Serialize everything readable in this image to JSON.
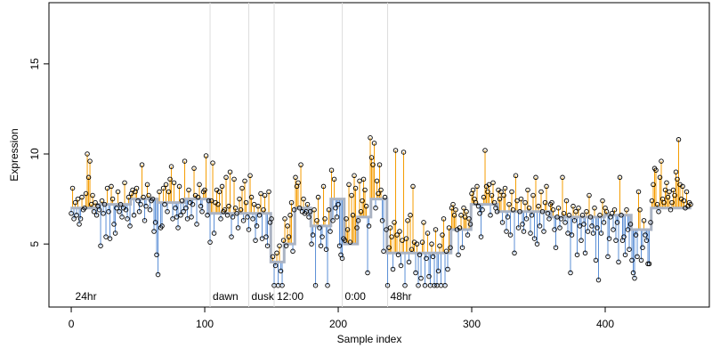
{
  "chart_data": {
    "type": "step-fit",
    "xlabel": "Sample index",
    "ylabel": "Expression",
    "xlim": [
      -16.7,
      478
    ],
    "ylim": [
      1.5,
      18.4
    ],
    "xticks": [
      0,
      100,
      200,
      300,
      400
    ],
    "yticks": [
      5,
      10,
      15
    ],
    "point_color": "#000000",
    "above_color": "#f59c00",
    "below_color": "#5b8fd6",
    "fit_color": "#aab3c3",
    "marker_color": "#dddddd",
    "marker_label_color": "#b0b0b0",
    "markers": [
      {
        "x": 1,
        "label": "24hr",
        "line": false
      },
      {
        "x": 104,
        "label": "dawn",
        "line": true
      },
      {
        "x": 133,
        "label": "dusk",
        "line": true
      },
      {
        "x": 152,
        "label": "12:00",
        "line": true
      },
      {
        "x": 203,
        "label": "0:00",
        "line": true
      },
      {
        "x": 237,
        "label": "48hr",
        "line": true
      }
    ],
    "fit": {
      "breaks": [
        0,
        20,
        45,
        65,
        85,
        104,
        150,
        160,
        168,
        180,
        195,
        205,
        215,
        225,
        237,
        285,
        300,
        320,
        360,
        400,
        420,
        435,
        465
      ],
      "levels": [
        7.0,
        7.2,
        7.5,
        7.3,
        7.5,
        6.7,
        4.0,
        5.0,
        7.0,
        6.0,
        7.5,
        5.0,
        6.5,
        7.5,
        4.5,
        5.8,
        7.2,
        6.8,
        6.5,
        6.6,
        5.8,
        7.0
      ]
    },
    "values": [
      6.7,
      8.1,
      6.4,
      7.3,
      6.6,
      7.5,
      6.1,
      6.4,
      7.6,
      6.9,
      7.0,
      7.8,
      10.0,
      8.7,
      9.6,
      7.2,
      7.7,
      6.8,
      7.3,
      6.6,
      7.1,
      6.9,
      4.9,
      7.4,
      6.7,
      7.2,
      5.4,
      8.1,
      6.8,
      5.3,
      8.2,
      7.5,
      6.1,
      5.6,
      7.0,
      7.9,
      6.8,
      7.2,
      6.5,
      7.0,
      8.4,
      6.9,
      6.4,
      7.6,
      6.0,
      7.8,
      8.0,
      6.6,
      7.9,
      8.1,
      7.4,
      6.8,
      7.2,
      9.4,
      7.6,
      6.3,
      7.1,
      8.3,
      7.7,
      6.9,
      7.4,
      7.5,
      5.7,
      6.2,
      4.4,
      3.3,
      7.9,
      5.9,
      6.0,
      8.1,
      7.2,
      8.3,
      6.8,
      7.9,
      8.6,
      9.3,
      6.4,
      8.4,
      7.0,
      6.5,
      5.9,
      8.2,
      6.6,
      7.4,
      6.8,
      9.6,
      7.0,
      6.4,
      8.0,
      7.3,
      6.5,
      7.2,
      9.2,
      7.7,
      6.1,
      7.6,
      8.3,
      7.1,
      6.8,
      7.9,
      8.0,
      9.9,
      6.6,
      7.4,
      5.1,
      7.4,
      9.5,
      5.6,
      7.3,
      8.0,
      7.2,
      7.9,
      6.4,
      8.2,
      6.8,
      6.9,
      8.7,
      6.6,
      7.1,
      9.0,
      5.4,
      6.5,
      8.6,
      7.0,
      6.7,
      5.9,
      7.5,
      6.9,
      8.1,
      6.3,
      8.5,
      7.3,
      6.5,
      5.8,
      8.8,
      7.6,
      6.4,
      7.2,
      5.2,
      6.0,
      7.1,
      6.6,
      7.8,
      5.3,
      6.9,
      7.7,
      5.4,
      4.9,
      7.9,
      6.2,
      6.4,
      4.3,
      2.7,
      3.8,
      4.5,
      2.7,
      4.9,
      3.5,
      2.7,
      5.2,
      6.4,
      4.9,
      6.0,
      5.4,
      6.6,
      7.3,
      4.6,
      6.9,
      8.7,
      8.2,
      8.4,
      7.0,
      9.4,
      6.8,
      7.5,
      6.7,
      6.8,
      7.2,
      6.5,
      6.8,
      5.0,
      5.5,
      6.9,
      2.7,
      6.3,
      7.6,
      5.9,
      4.9,
      5.4,
      8.2,
      6.4,
      4.7,
      2.7,
      6.9,
      5.7,
      9.1,
      6.3,
      8.6,
      7.0,
      6.5,
      7.2,
      4.9,
      4.4,
      4.2,
      5.3,
      5.2,
      6.4,
      5.8,
      8.3,
      5.1,
      7.7,
      6.6,
      8.8,
      8.1,
      5.9,
      6.3,
      8.5,
      6.8,
      7.4,
      8.6,
      8.0,
      7.1,
      3.4,
      6.0,
      10.9,
      9.8,
      9.4,
      10.6,
      7.0,
      8.5,
      7.8,
      9.4,
      8.0,
      6.3,
      4.6,
      7.6,
      5.8,
      2.7,
      4.8,
      5.9,
      5.4,
      3.6,
      6.2,
      10.2,
      5.5,
      4.4,
      5.7,
      3.8,
      5.2,
      10.1,
      2.7,
      5.3,
      6.3,
      4.0,
      6.6,
      4.7,
      8.2,
      5.1,
      3.4,
      5.0,
      2.7,
      4.4,
      3.1,
      5.1,
      6.2,
      2.7,
      4.2,
      5.6,
      3.2,
      2.7,
      5.0,
      4.3,
      2.7,
      5.8,
      2.7,
      3.5,
      4.9,
      2.7,
      5.5,
      6.4,
      2.7,
      4.6,
      3.6,
      5.9,
      4.8,
      7.0,
      7.2,
      6.6,
      6.9,
      5.8,
      4.4,
      5.9,
      6.6,
      4.8,
      7.0,
      6.5,
      6.8,
      5.5,
      6.4,
      6.1,
      7.8,
      8.0,
      7.5,
      7.3,
      8.2,
      7.1,
      6.7,
      5.4,
      6.9,
      7.6,
      10.2,
      8.2,
      7.9,
      8.3,
      6.6,
      7.7,
      8.4,
      7.3,
      7.0,
      6.8,
      8.0,
      7.5,
      7.9,
      6.2,
      7.7,
      8.1,
      5.7,
      6.5,
      7.2,
      5.5,
      7.9,
      6.9,
      4.5,
      8.8,
      7.4,
      5.9,
      6.8,
      7.5,
      6.1,
      5.7,
      7.3,
      6.4,
      8.0,
      7.0,
      5.6,
      6.6,
      7.7,
      5.3,
      8.7,
      5.0,
      7.1,
      6.0,
      7.9,
      6.8,
      5.7,
      7.3,
      8.2,
      6.7,
      6.4,
      7.2,
      7.3,
      6.9,
      5.8,
      4.8,
      6.5,
      7.0,
      5.9,
      6.4,
      8.7,
      6.7,
      6.2,
      7.4,
      5.6,
      6.6,
      3.4,
      5.5,
      7.1,
      6.3,
      6.8,
      4.4,
      7.0,
      6.0,
      5.2,
      6.6,
      6.1,
      4.5,
      6.8,
      5.7,
      7.7,
      6.5,
      6.0,
      5.6,
      7.0,
      4.1,
      5.9,
      3.0,
      6.6,
      5.6,
      7.4,
      6.2,
      7.0,
      6.8,
      4.3,
      5.3,
      6.5,
      6.7,
      5.8,
      6.9,
      5.2,
      6.2,
      4.0,
      8.7,
      6.6,
      5.2,
      5.4,
      4.4,
      6.9,
      5.8,
      4.7,
      6.1,
      4.1,
      3.4,
      3.1,
      5.5,
      4.3,
      7.9,
      6.9,
      4.1,
      4.8,
      6.3,
      5.5,
      5.2,
      3.9,
      3.9,
      6.2,
      7.4,
      8.3,
      9.2,
      9.1,
      7.2,
      6.8,
      8.7,
      9.6,
      7.5,
      7.3,
      8.0,
      8.4,
      7.6,
      7.9,
      6.9,
      7.3,
      8.0,
      7.7,
      9.0,
      8.6,
      10.8,
      8.3,
      7.5,
      8.2,
      7.4,
      7.0,
      7.9,
      7.1,
      7.3,
      7.2
    ]
  }
}
